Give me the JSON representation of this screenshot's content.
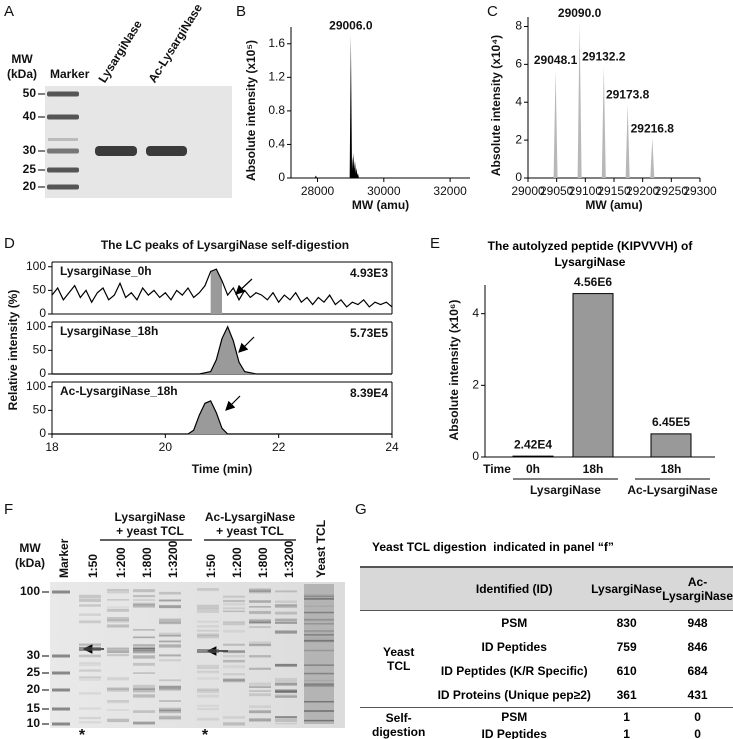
{
  "panel_labels": [
    "A",
    "B",
    "C",
    "D",
    "E",
    "F",
    "G"
  ],
  "gel_a": {
    "mw_label": "MW",
    "mw_unit": "(kDa)",
    "lanes": [
      "Marker",
      "LysargiNase",
      "Ac-LysargiNase"
    ],
    "markers": [
      "50",
      "40",
      "30",
      "25",
      "20"
    ]
  },
  "chart_data": [
    {
      "type": "spectrum",
      "xlabel": "MW (amu)",
      "ylabel": "Absolute intensity (x10⁵)",
      "color": "#000000",
      "x": [
        27950,
        29006,
        29048,
        29090,
        29132,
        29174,
        29216
      ],
      "values": [
        0.03,
        1.7,
        0.25,
        0.3,
        0.2,
        0.12,
        0.06
      ],
      "x_labels": [
        null,
        "29006.0",
        null,
        null,
        null,
        null,
        null
      ],
      "xlim": [
        27200,
        32600
      ],
      "xticks": [
        28000,
        30000,
        32000
      ],
      "ylim": [
        0,
        1.8
      ],
      "yticks": [
        0,
        0.4,
        0.8,
        1.2,
        1.6
      ]
    },
    {
      "type": "spectrum",
      "xlabel": "MW (amu)",
      "ylabel": "Absolute intensity (x10⁴)",
      "color": "#b8b8b8",
      "x": [
        29048.1,
        29090.0,
        29132.2,
        29173.8,
        29216.8
      ],
      "values": [
        5.7,
        8.2,
        5.9,
        3.9,
        2.1
      ],
      "x_labels": [
        "29048.1",
        "29090.0",
        "29132.2",
        "29173.8",
        "29216.8"
      ],
      "xlim": [
        29000,
        29300
      ],
      "xticks": [
        29000,
        29050,
        29100,
        29150,
        29200,
        29250,
        29300
      ],
      "ylim": [
        0,
        8.5
      ],
      "yticks": [
        0,
        2,
        4,
        6,
        8
      ]
    },
    {
      "type": "line",
      "title": "The LC peaks of LysargiNase self-digestion",
      "xlabel": "Time (min)",
      "ylabel": "Relative intensity (%)",
      "xlim": [
        18,
        24
      ],
      "xticks": [
        18,
        20,
        22,
        24
      ],
      "color": "#000000",
      "shade_color": "#9a9a9a",
      "subplots": [
        {
          "name": "LysargiNase_0h",
          "annotation": "4.93E3",
          "ylim": [
            0,
            110
          ],
          "yticks": [
            0,
            50,
            100
          ],
          "shade": [
            20.75,
            21.05
          ],
          "x": [
            18.0,
            18.1,
            18.2,
            18.3,
            18.4,
            18.5,
            18.6,
            18.7,
            18.8,
            18.9,
            19.0,
            19.1,
            19.2,
            19.3,
            19.4,
            19.5,
            19.6,
            19.7,
            19.8,
            19.9,
            20.0,
            20.1,
            20.2,
            20.3,
            20.4,
            20.5,
            20.6,
            20.7,
            20.8,
            20.9,
            21.0,
            21.1,
            21.2,
            21.3,
            21.4,
            21.5,
            21.6,
            21.7,
            21.8,
            21.9,
            22.0,
            22.1,
            22.2,
            22.3,
            22.4,
            22.5,
            22.6,
            22.7,
            22.8,
            22.9,
            23.0,
            23.1,
            23.2,
            23.3,
            23.4,
            23.5,
            23.6,
            23.7,
            23.8,
            23.9,
            24.0
          ],
          "values": [
            40,
            55,
            30,
            45,
            60,
            35,
            50,
            25,
            45,
            55,
            30,
            40,
            65,
            35,
            45,
            30,
            55,
            40,
            50,
            35,
            45,
            30,
            50,
            40,
            55,
            35,
            45,
            60,
            90,
            95,
            70,
            40,
            55,
            30,
            50,
            35,
            45,
            40,
            30,
            45,
            25,
            40,
            30,
            45,
            25,
            35,
            20,
            35,
            25,
            40,
            20,
            30,
            15,
            25,
            20,
            30,
            15,
            25,
            20,
            25,
            15
          ]
        },
        {
          "name": "LysargiNase_18h",
          "annotation": "5.73E5",
          "ylim": [
            0,
            110
          ],
          "yticks": [
            0,
            50,
            100
          ],
          "shade": [
            20.6,
            21.6
          ],
          "x": [
            18,
            20.6,
            20.8,
            20.9,
            21.0,
            21.1,
            21.2,
            21.3,
            21.4,
            21.6,
            24
          ],
          "values": [
            0,
            0,
            5,
            30,
            75,
            100,
            70,
            25,
            5,
            0,
            0
          ]
        },
        {
          "name": "Ac-LysargiNase_18h",
          "annotation": "8.39E4",
          "ylim": [
            0,
            110
          ],
          "yticks": [
            0,
            50,
            100
          ],
          "shade": [
            20.4,
            21.1
          ],
          "x": [
            18,
            20.4,
            20.5,
            20.6,
            20.7,
            20.8,
            20.9,
            21.0,
            21.1,
            24
          ],
          "values": [
            0,
            0,
            8,
            40,
            65,
            70,
            45,
            12,
            0,
            0
          ]
        }
      ]
    },
    {
      "type": "bar",
      "title": "The autolyzed peptide (KIPVVVH) of LysargiNase",
      "ylabel": "Absolute intensity (x10⁶)",
      "xlabel": "Time",
      "categories": [
        "0h",
        "18h",
        "18h"
      ],
      "values": [
        0.0242,
        4.56,
        0.645
      ],
      "value_labels": [
        "2.42E4",
        "4.56E6",
        "6.45E5"
      ],
      "groups": [
        "LysargiNase",
        "Ac-LysargiNase"
      ],
      "color": "#999999",
      "ylim": [
        0,
        4.8
      ],
      "yticks": [
        0,
        2,
        4
      ]
    }
  ],
  "gel_f": {
    "mw_label": "MW",
    "mw_unit": "(kDa)",
    "lanes": [
      "Marker",
      "1:50",
      "1:200",
      "1:800",
      "1:3200",
      "1:50",
      "1:200",
      "1:800",
      "1:3200",
      "Yeast TCL"
    ],
    "groups": [
      {
        "name": "LysargiNase",
        "subtitle": "+ yeast TCL"
      },
      {
        "name": "Ac-LysargiNase",
        "subtitle": "+ yeast TCL"
      }
    ],
    "markers": [
      "100",
      "30",
      "25",
      "20",
      "15",
      "10"
    ],
    "asterisks": [
      "*",
      "*"
    ]
  },
  "table_g": {
    "title": "Yeast TCL digestion  indicated in panel “f”",
    "header": [
      "Identified (ID)",
      "LysargiNase",
      "Ac-LysargiNase"
    ],
    "groups": [
      {
        "label": "Yeast TCL",
        "rows": [
          [
            "PSM",
            "830",
            "948"
          ],
          [
            "ID Peptides",
            "759",
            "846"
          ],
          [
            "ID Peptides (K/R Specific)",
            "610",
            "684"
          ],
          [
            "ID Proteins (Unique pep≥2)",
            "361",
            "431"
          ]
        ]
      },
      {
        "label": "Self-digestion",
        "rows": [
          [
            "PSM",
            "1",
            "0"
          ],
          [
            "ID Peptides",
            "1",
            "0"
          ]
        ]
      }
    ]
  }
}
